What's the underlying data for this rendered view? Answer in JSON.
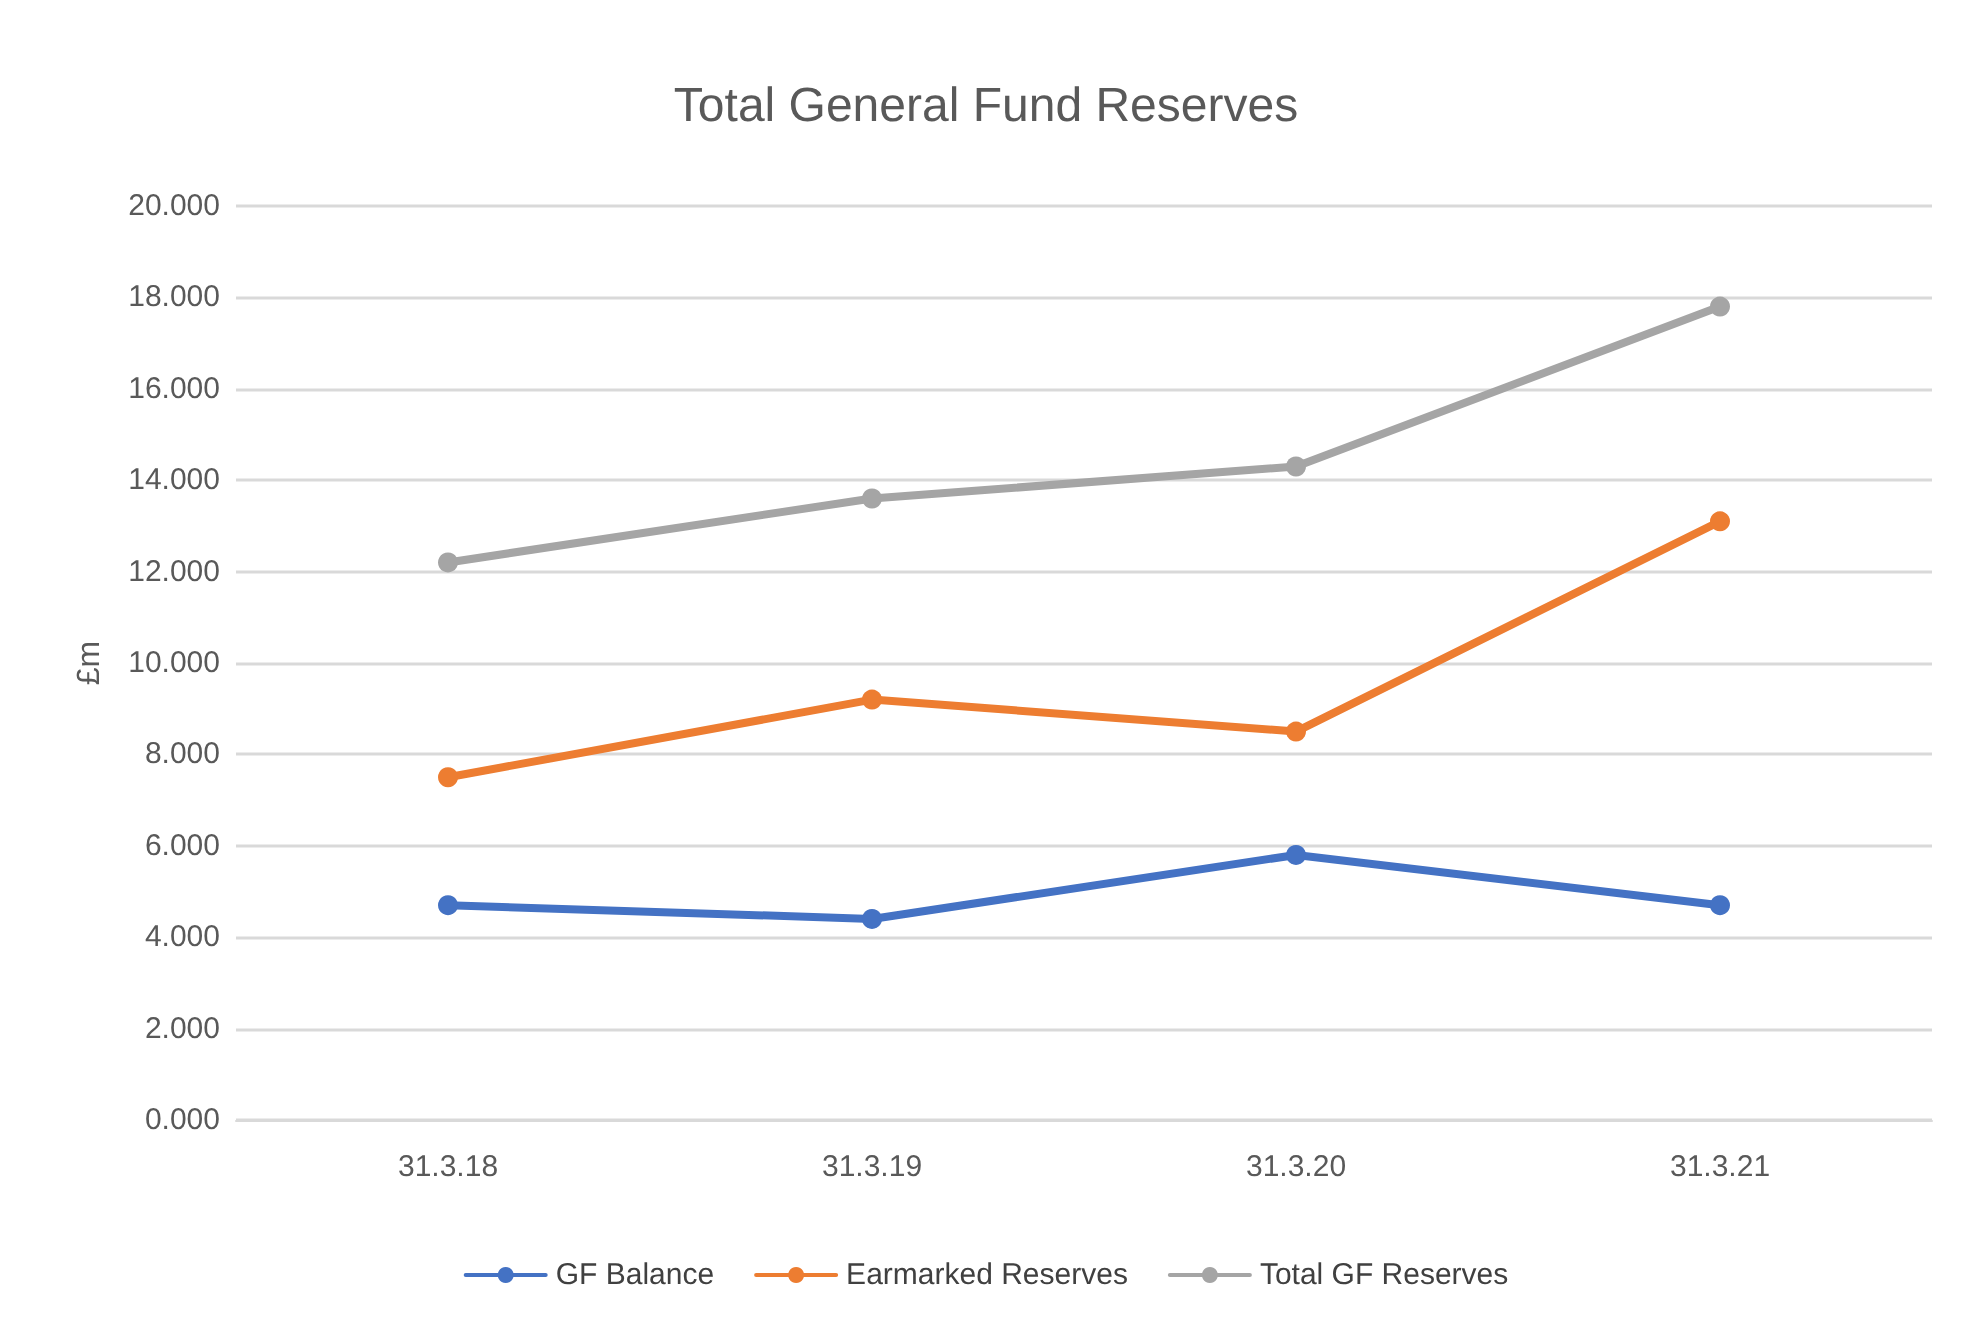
{
  "chart_data": {
    "type": "line",
    "title": "Total General Fund Reserves",
    "ylabel": "£m",
    "categories": [
      "31.3.18",
      "31.3.19",
      "31.3.20",
      "31.3.21"
    ],
    "series": [
      {
        "name": "GF Balance",
        "color": "#4472c4",
        "values": [
          4.7,
          4.4,
          5.8,
          4.7
        ]
      },
      {
        "name": "Earmarked Reserves",
        "color": "#ed7d31",
        "values": [
          7.5,
          9.2,
          8.5,
          13.1
        ]
      },
      {
        "name": "Total GF Reserves",
        "color": "#a5a5a5",
        "values": [
          12.2,
          13.6,
          14.3,
          17.8
        ]
      }
    ],
    "ylim": [
      0,
      20
    ],
    "yticks": [
      {
        "value": 0,
        "label": "0.000"
      },
      {
        "value": 2,
        "label": "2.000"
      },
      {
        "value": 4,
        "label": "4.000"
      },
      {
        "value": 6,
        "label": "6.000"
      },
      {
        "value": 8,
        "label": "8.000"
      },
      {
        "value": 10,
        "label": "10.000"
      },
      {
        "value": 12,
        "label": "12.000"
      },
      {
        "value": 14,
        "label": "14.000"
      },
      {
        "value": 16,
        "label": "16.000"
      },
      {
        "value": 18,
        "label": "18.000"
      },
      {
        "value": 20,
        "label": "20.000"
      }
    ],
    "grid": "y",
    "legend": "bottom",
    "marker": "circle",
    "line_style": "solid"
  }
}
